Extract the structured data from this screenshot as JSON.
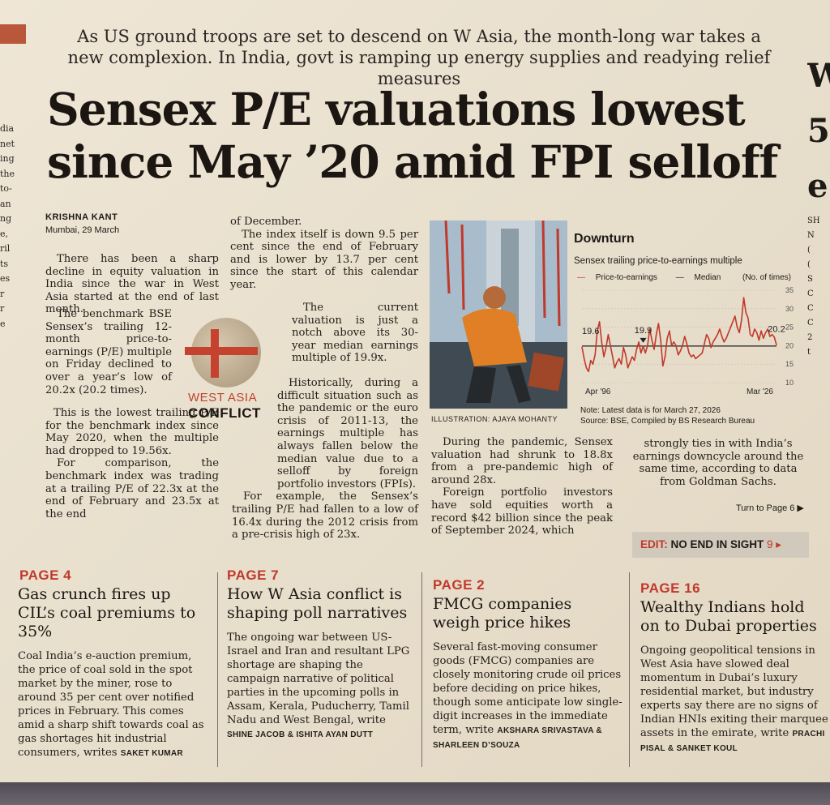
{
  "kicker": "As US ground troops are set to descend on W Asia, the month-long war takes a new complexion. In India, govt is ramping up energy supplies and readying relief measures",
  "headline": "Sensex P/E valuations lowest since May ’20 amid FPI selloff",
  "byline": "KRISHNA KANT",
  "dateline": "Mumbai, 29 March",
  "left_edge_fragments": [
    "dia",
    "net",
    "ing",
    "the",
    "to-",
    "an",
    "ng",
    "e,",
    "ril",
    "ts",
    "es",
    "r",
    "r",
    "e"
  ],
  "right_edge_fragments": {
    "big": [
      "W",
      "5",
      "e"
    ],
    "small": [
      "SH",
      "N",
      "(",
      "(",
      "S",
      "C",
      "C",
      "C",
      "2",
      "t"
    ]
  },
  "article": {
    "col1_p1": "There has been a sharp decline in equity valuation in India since the war in West Asia started at the end of last month.",
    "col1_p2": "The benchmark BSE Sensex’s trailing 12-month price-to-earnings (P/E) multiple on Friday declined to over a year’s low of 20.2x (20.2 times).",
    "col1_p3": "This is the lowest trailing P/E for the benchmark index since May 2020, when the multiple had dropped to 19.56x.",
    "col1_p4": "For comparison, the benchmark index was trading at a trailing P/E of 22.3x at the end of February and 23.5x at the end",
    "col2_p1": "of December.",
    "col2_p2": "The index itself is down 9.5 per cent since the end of February and is lower by 13.7 per cent since the start of this calendar year.",
    "col2_p3": "The current valuation is just a notch above its 30-year median earnings multiple of 19.9x.",
    "col2_p4": "Historically, during a difficult situation such as the pandemic or the euro crisis of 2011-13, the earnings multiple has always fallen below the median value due to a selloff by foreign portfolio investors (FPIs).",
    "col2_p5": "For example, the Sensex’s trailing P/E had fallen to a low of 16.4x during the 2012 crisis from a pre-crisis high of 23x.",
    "col3_p1": "During the pandemic, Sensex valuation had shrunk to 18.8x from a pre-pandemic high of around 28x.",
    "col3_p2": "Foreign portfolio investors have sold equities worth a record $42 billion since the peak of September 2024, which",
    "col4_p1": "strongly ties in with India’s earnings downcycle around the same time, according to data from Goldman Sachs.",
    "turn": "Turn to Page 6 ▶"
  },
  "logo": {
    "line1": "WEST ASIA",
    "line2": "CONFLICT"
  },
  "illustration_credit": "ILLUSTRATION: AJAYA MOHANTY",
  "chart_data": {
    "type": "line",
    "title": "Downturn",
    "subtitle": "Sensex trailing price-to-earnings multiple",
    "legend": [
      "Price-to-earnings",
      "Median"
    ],
    "units": "(No. of times)",
    "x_start_label": "Apr '96",
    "x_end_label": "Mar '26",
    "ylim": [
      10,
      35
    ],
    "yticks": [
      10,
      15,
      20,
      25,
      30,
      35
    ],
    "median": 19.9,
    "annotations": [
      {
        "label": "19.6",
        "series_index": 0
      },
      {
        "label": "19.9",
        "series_index": 28
      },
      {
        "label": "20.2",
        "series_index": 89
      }
    ],
    "series": [
      {
        "name": "Price-to-earnings",
        "values": [
          19.6,
          16.5,
          14.0,
          13.0,
          16.0,
          15.0,
          17.5,
          24.0,
          26.5,
          21.0,
          17.0,
          19.5,
          23.0,
          20.0,
          17.0,
          14.0,
          15.5,
          16.5,
          15.0,
          19.5,
          17.5,
          14.0,
          15.5,
          17.0,
          16.0,
          19.0,
          21.0,
          18.0,
          19.9,
          18.0,
          20.0,
          24.5,
          21.5,
          19.0,
          23.0,
          26.0,
          21.5,
          14.5,
          17.0,
          22.0,
          24.0,
          20.0,
          21.0,
          20.0,
          17.5,
          18.5,
          20.0,
          22.5,
          20.5,
          18.0,
          17.0,
          17.5,
          16.5,
          17.0,
          17.5,
          18.0,
          20.5,
          23.0,
          22.0,
          19.5,
          21.0,
          22.0,
          23.0,
          24.5,
          22.5,
          21.0,
          22.0,
          23.5,
          25.0,
          26.5,
          28.0,
          25.0,
          23.5,
          27.0,
          33.0,
          29.0,
          27.5,
          23.0,
          22.5,
          24.5,
          23.5,
          21.5,
          24.0,
          22.0,
          23.5,
          24.5,
          22.5,
          23.0,
          22.3,
          20.2
        ]
      }
    ]
  },
  "chart_note": "Note: Latest data is for March 27, 2026",
  "chart_source": "Source: BSE, Compiled by BS Research Bureau",
  "edit_box": {
    "label": "EDIT:",
    "text": "NO END IN SIGHT",
    "page": "9 ▸"
  },
  "promos": [
    {
      "page": "PAGE 4",
      "headline": "Gas crunch fires up CIL’s coal premiums to 35%",
      "text": "Coal India’s e-auction premium, the price of coal sold in the spot market by the miner, rose to around 35 per cent over notified prices in February. This comes amid a sharp shift towards coal as gas shortages hit industrial consumers, writes",
      "writer": "SAKET KUMAR"
    },
    {
      "page": "PAGE 7",
      "headline": "How W Asia conflict is shaping poll narratives",
      "text": "The ongoing war between US-Israel and Iran and resultant LPG shortage are shaping the campaign narrative of political parties in the upcoming polls in Assam, Kerala, Puducherry, Tamil Nadu and West Bengal, write",
      "writer": "SHINE JACOB & ISHITA AYAN DUTT"
    },
    {
      "page": "PAGE 2",
      "headline": "FMCG companies weigh price hikes",
      "text": "Several fast-moving consumer goods (FMCG) companies are closely monitoring crude oil prices before deciding on price hikes, though some anticipate low single-digit increases in the immediate term, write",
      "writer": "AKSHARA SRIVASTAVA & SHARLEEN D’SOUZA"
    },
    {
      "page": "PAGE 16",
      "headline": "Wealthy Indians hold on to Dubai properties",
      "text": "Ongoing geopolitical tensions in West Asia have slowed deal momentum in Dubai’s luxury residential market, but industry experts say there are no signs of Indian HNIs exiting their marquee assets in the emirate, write",
      "writer": "PRACHI PISAL & SANKET KOUL"
    }
  ],
  "colors": {
    "accent_red": "#c0392b",
    "chart_line": "#c0392b",
    "paper": "#ece3d2"
  }
}
